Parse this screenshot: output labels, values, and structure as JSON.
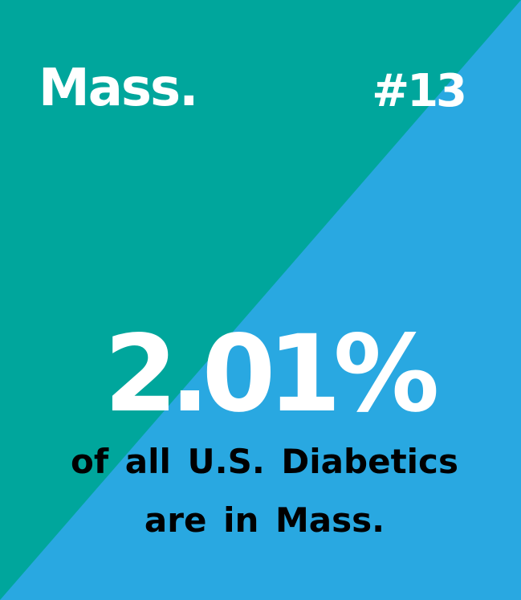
{
  "colors": {
    "teal": "#00a69c",
    "blue": "#29a8e1",
    "text_light": "#ffffff",
    "text_dark": "#000000"
  },
  "header": {
    "state": "Mass.",
    "rank": "#13"
  },
  "stat": {
    "value": "2.01%",
    "line1": "of all U.S. Diabetics",
    "line2": "are in Mass."
  }
}
